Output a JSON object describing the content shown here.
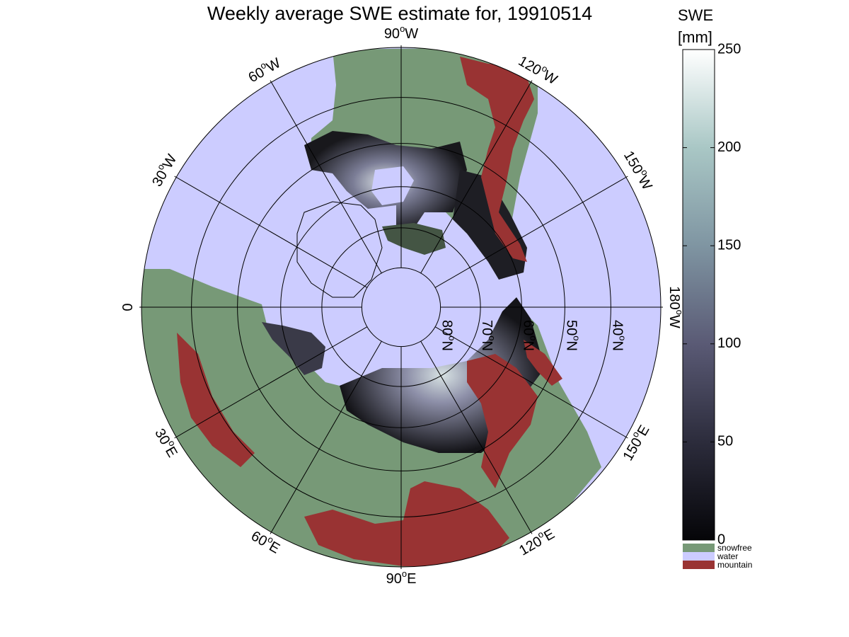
{
  "title": "Weekly average SWE estimate for, 19910514",
  "map": {
    "projection": "north polar stereographic",
    "longitude_labels": [
      {
        "text": "90",
        "suffix": "W",
        "lon": 0
      },
      {
        "text": "120",
        "suffix": "W",
        "lon": 30
      },
      {
        "text": "150",
        "suffix": "W",
        "lon": 60
      },
      {
        "text": "180",
        "suffix": "W",
        "lon": 90
      },
      {
        "text": "150",
        "suffix": "E",
        "lon": 120
      },
      {
        "text": "120",
        "suffix": "E",
        "lon": 150
      },
      {
        "text": "90",
        "suffix": "E",
        "lon": 180
      },
      {
        "text": "60",
        "suffix": "E",
        "lon": 210
      },
      {
        "text": "30",
        "suffix": "E",
        "lon": 240
      },
      {
        "text": "0",
        "suffix": "",
        "lon": 270
      },
      {
        "text": "30",
        "suffix": "W",
        "lon": 300
      },
      {
        "text": "60",
        "suffix": "W",
        "lon": 330
      }
    ],
    "latitude_labels": [
      {
        "text": "80",
        "suffix": "N",
        "lat": 80
      },
      {
        "text": "70",
        "suffix": "N",
        "lat": 70
      },
      {
        "text": "60",
        "suffix": "N",
        "lat": 60
      },
      {
        "text": "50",
        "suffix": "N",
        "lat": 50
      },
      {
        "text": "40",
        "suffix": "N",
        "lat": 40
      }
    ],
    "latitude_circles": [
      80,
      70,
      60,
      50,
      40,
      30
    ],
    "degree_symbol": "o",
    "colors": {
      "water": "#ccccff",
      "snowfree": "#779977",
      "mountain": "#993333",
      "snow_low": "#0a0a0e",
      "snow_high": "#ffffff",
      "grid": "#000000"
    }
  },
  "colorbar": {
    "title_line1": "SWE",
    "title_line2": "[mm]",
    "range": [
      0,
      250
    ],
    "ticks": [
      "0",
      "50",
      "100",
      "150",
      "200",
      "250"
    ],
    "tick_values": [
      0,
      50,
      100,
      150,
      200,
      250
    ],
    "categories": [
      {
        "label": "snowfree",
        "color": "#779977"
      },
      {
        "label": "water",
        "color": "#ccccff"
      },
      {
        "label": "mountain",
        "color": "#993333"
      }
    ]
  }
}
